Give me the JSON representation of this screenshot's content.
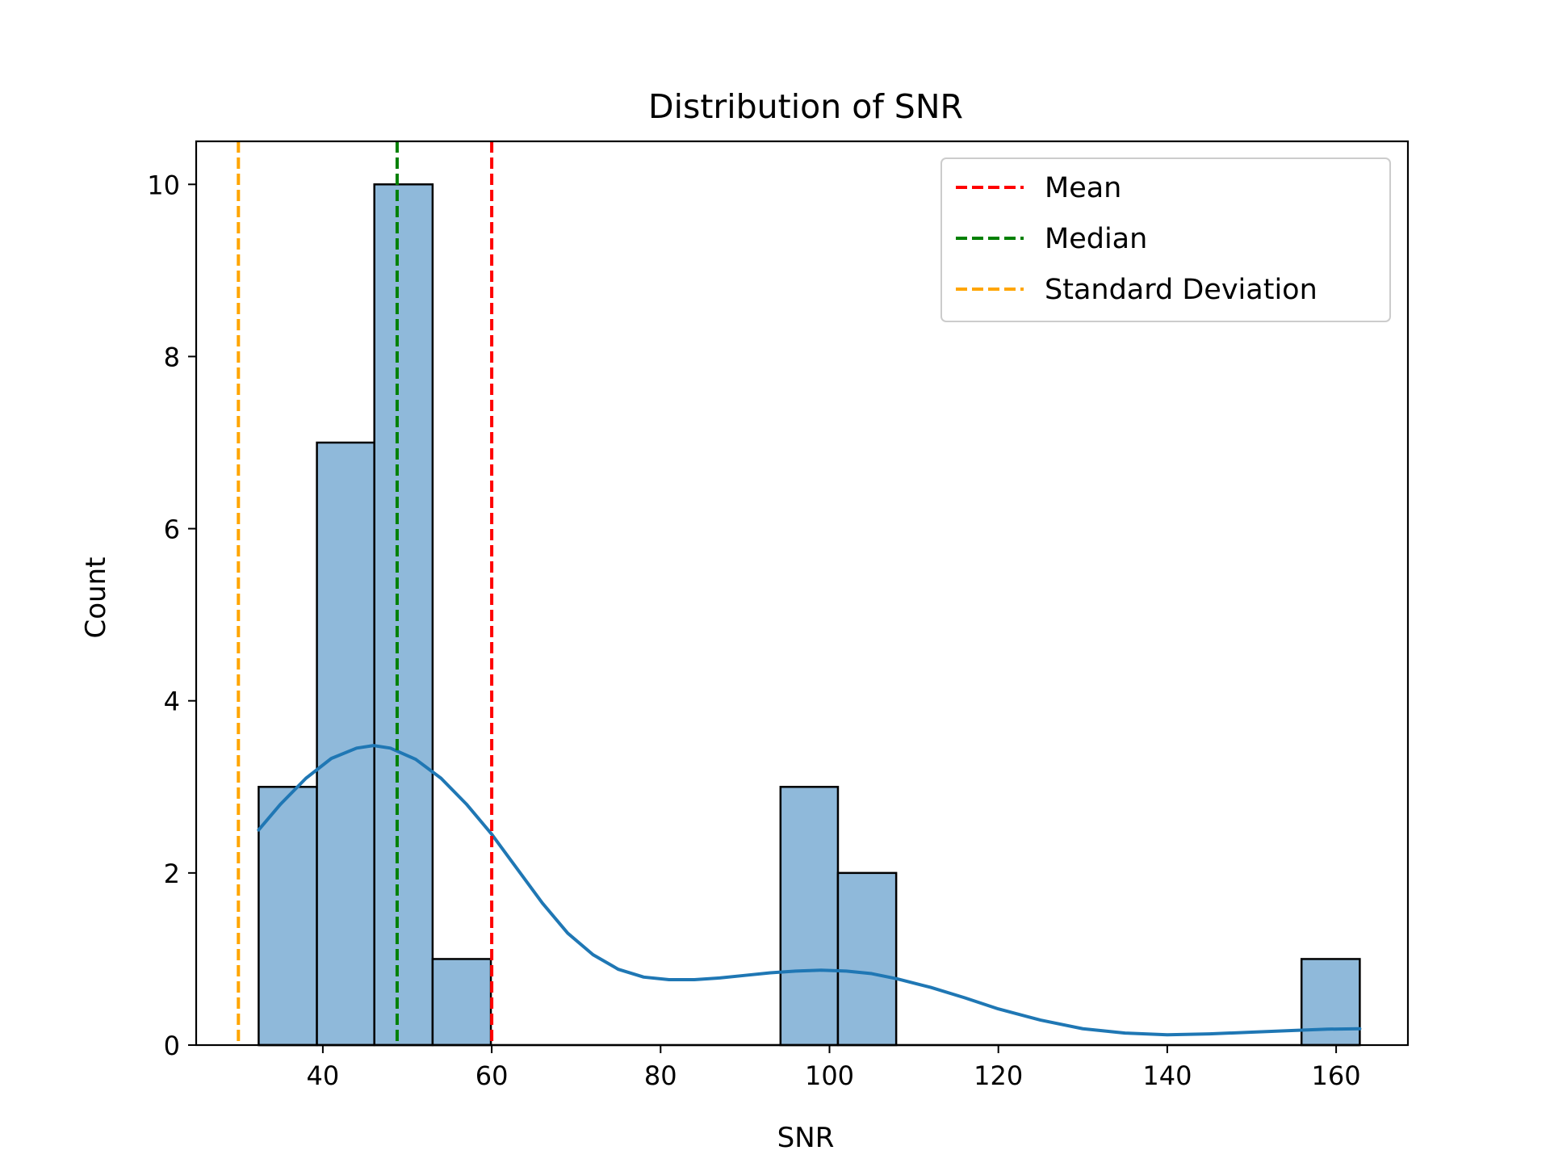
{
  "chart_data": {
    "type": "bar",
    "title": "Distribution of SNR",
    "xlabel": "SNR",
    "ylabel": "Count",
    "xlim": [
      25,
      168.5
    ],
    "ylim": [
      0,
      10.5
    ],
    "xticks": [
      40,
      60,
      80,
      100,
      120,
      140,
      160
    ],
    "yticks": [
      0,
      2,
      4,
      6,
      8,
      10
    ],
    "grid": false,
    "legend_position": "top-right",
    "histogram": {
      "bins": [
        {
          "start": 32.4,
          "end": 39.3,
          "count": 3
        },
        {
          "start": 39.3,
          "end": 46.1,
          "count": 7
        },
        {
          "start": 46.1,
          "end": 53.0,
          "count": 10
        },
        {
          "start": 53.0,
          "end": 59.9,
          "count": 1
        },
        {
          "start": 59.9,
          "end": 66.7,
          "count": 0
        },
        {
          "start": 66.7,
          "end": 73.6,
          "count": 0
        },
        {
          "start": 73.6,
          "end": 80.4,
          "count": 0
        },
        {
          "start": 80.4,
          "end": 87.3,
          "count": 0
        },
        {
          "start": 87.3,
          "end": 94.2,
          "count": 0
        },
        {
          "start": 94.2,
          "end": 101.0,
          "count": 3
        },
        {
          "start": 101.0,
          "end": 107.9,
          "count": 2
        },
        {
          "start": 107.9,
          "end": 114.8,
          "count": 0
        },
        {
          "start": 114.8,
          "end": 121.6,
          "count": 0
        },
        {
          "start": 121.6,
          "end": 128.5,
          "count": 0
        },
        {
          "start": 128.5,
          "end": 135.3,
          "count": 0
        },
        {
          "start": 135.3,
          "end": 142.2,
          "count": 0
        },
        {
          "start": 142.2,
          "end": 149.1,
          "count": 0
        },
        {
          "start": 149.1,
          "end": 155.9,
          "count": 0
        },
        {
          "start": 155.9,
          "end": 162.8,
          "count": 1
        }
      ],
      "fill_color": "#8fb9da",
      "edge_color": "#000000"
    },
    "kde": {
      "color": "#1f77b4",
      "x": [
        32.4,
        35,
        38,
        41,
        44,
        46,
        48,
        51,
        54,
        57,
        60,
        63,
        66,
        69,
        72,
        75,
        78,
        81,
        84,
        87,
        90,
        93,
        96,
        99,
        102,
        105,
        108,
        112,
        116,
        120,
        125,
        130,
        135,
        140,
        145,
        150,
        155,
        159,
        162.8
      ],
      "y": [
        2.5,
        2.8,
        3.1,
        3.33,
        3.45,
        3.48,
        3.45,
        3.32,
        3.1,
        2.8,
        2.45,
        2.05,
        1.65,
        1.3,
        1.05,
        0.88,
        0.79,
        0.76,
        0.76,
        0.78,
        0.81,
        0.84,
        0.86,
        0.87,
        0.86,
        0.83,
        0.77,
        0.67,
        0.55,
        0.42,
        0.29,
        0.19,
        0.14,
        0.12,
        0.13,
        0.15,
        0.17,
        0.185,
        0.19
      ]
    },
    "reference_lines": [
      {
        "name": "Mean",
        "x": 60.0,
        "color": "#ff0000",
        "style": "dashed"
      },
      {
        "name": "Median",
        "x": 48.8,
        "color": "#008000",
        "style": "dashed"
      },
      {
        "name": "Standard Deviation",
        "x": 30.0,
        "color": "#ffa500",
        "style": "dashed"
      }
    ]
  }
}
